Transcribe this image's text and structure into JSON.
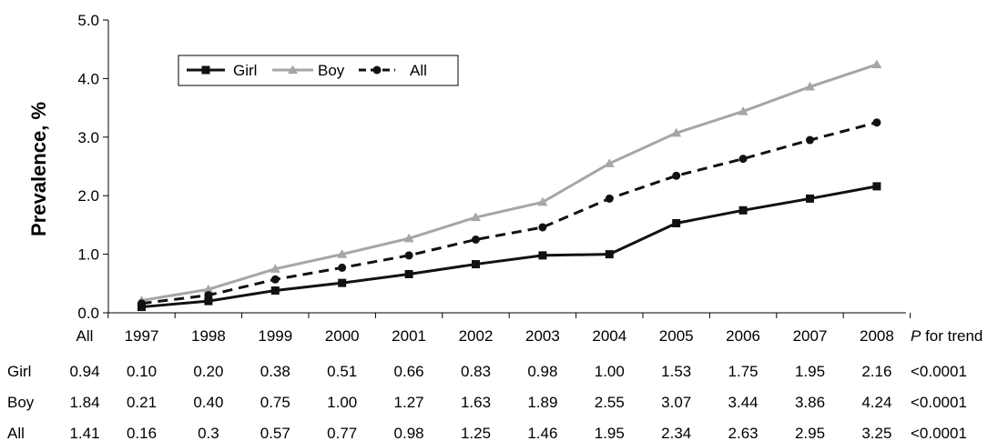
{
  "chart_data": {
    "type": "line",
    "title": "",
    "xlabel": "",
    "ylabel": "Prevalence, %",
    "ylim": [
      0,
      5
    ],
    "y_ticks": [
      "0.0",
      "1.0",
      "2.0",
      "3.0",
      "4.0",
      "5.0"
    ],
    "categories": [
      "1997",
      "1998",
      "1999",
      "2000",
      "2001",
      "2002",
      "2003",
      "2004",
      "2005",
      "2006",
      "2007",
      "2008"
    ],
    "grid": false,
    "legend_placement": "top-left",
    "series": [
      {
        "name": "Girl",
        "color": "#111111",
        "line_style": "solid",
        "marker": "square",
        "values": [
          0.1,
          0.2,
          0.38,
          0.51,
          0.66,
          0.83,
          0.98,
          1.0,
          1.53,
          1.75,
          1.95,
          2.16
        ]
      },
      {
        "name": "Boy",
        "color": "#a6a6a6",
        "line_style": "solid",
        "marker": "triangle",
        "values": [
          0.21,
          0.4,
          0.75,
          1.0,
          1.27,
          1.63,
          1.89,
          2.55,
          3.07,
          3.44,
          3.86,
          4.24
        ]
      },
      {
        "name": "All",
        "color": "#111111",
        "line_style": "dashed",
        "marker": "circle",
        "values": [
          0.16,
          0.3,
          0.57,
          0.77,
          0.98,
          1.25,
          1.46,
          1.95,
          2.34,
          2.63,
          2.95,
          3.25
        ]
      }
    ],
    "table": {
      "all_header": "All",
      "ptrend_p": "P",
      "ptrend_rest": " for trend",
      "rows": [
        {
          "label": "Girl",
          "all": "0.94",
          "values": [
            "0.10",
            "0.20",
            "0.38",
            "0.51",
            "0.66",
            "0.83",
            "0.98",
            "1.00",
            "1.53",
            "1.75",
            "1.95",
            "2.16"
          ],
          "p_trend": "<0.0001"
        },
        {
          "label": "Boy",
          "all": "1.84",
          "values": [
            "0.21",
            "0.40",
            "0.75",
            "1.00",
            "1.27",
            "1.63",
            "1.89",
            "2.55",
            "3.07",
            "3.44",
            "3.86",
            "4.24"
          ],
          "p_trend": "<0.0001"
        },
        {
          "label": "All",
          "all": "1.41",
          "values": [
            "0.16",
            "0.3",
            "0.57",
            "0.77",
            "0.98",
            "1.25",
            "1.46",
            "1.95",
            "2.34",
            "2.63",
            "2.95",
            "3.25"
          ],
          "p_trend": "<0.0001"
        }
      ]
    }
  }
}
